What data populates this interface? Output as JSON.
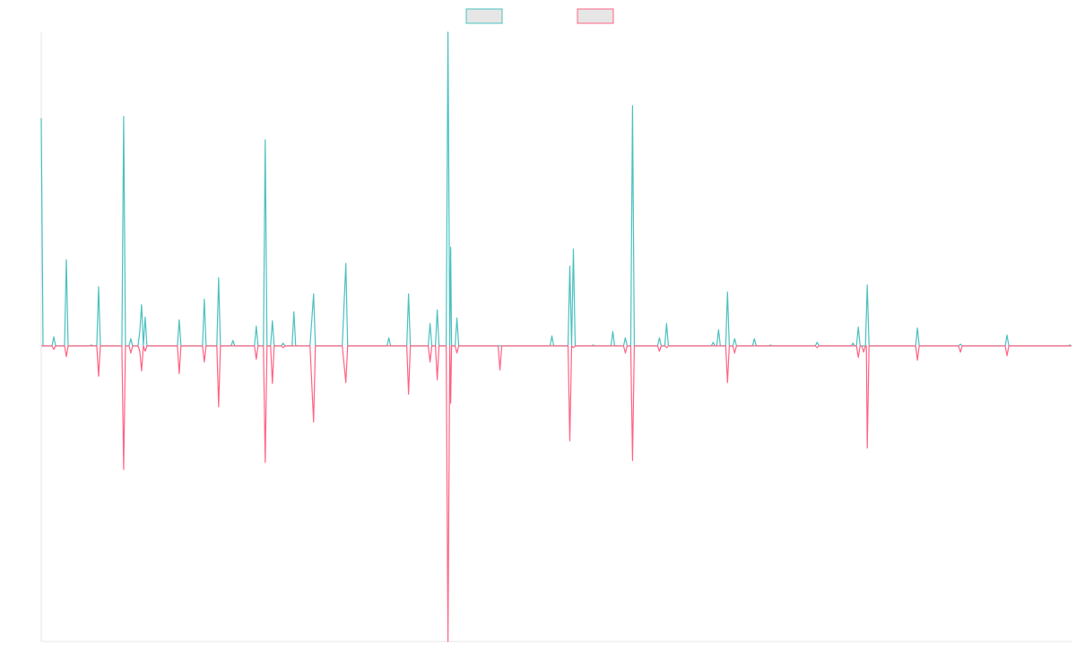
{
  "chart_data": {
    "type": "line",
    "title": "",
    "xlabel": "",
    "ylabel": "",
    "grid": false,
    "legend_position": "top-center",
    "ylim": [
      -330,
      350
    ],
    "xlim": [
      0,
      575
    ],
    "series": [
      {
        "color": "#4bc0c0",
        "fill": "#e6e6e6",
        "points": [
          [
            0,
            254
          ],
          [
            1,
            0
          ],
          [
            6,
            0
          ],
          [
            7,
            10
          ],
          [
            8,
            0
          ],
          [
            13,
            0
          ],
          [
            14,
            96
          ],
          [
            15,
            0
          ],
          [
            27,
            0
          ],
          [
            28,
            1
          ],
          [
            29,
            0
          ],
          [
            31,
            0
          ],
          [
            32,
            66
          ],
          [
            33,
            0
          ],
          [
            45,
            0
          ],
          [
            46,
            256
          ],
          [
            47,
            0
          ],
          [
            49,
            0
          ],
          [
            50,
            8
          ],
          [
            51,
            0
          ],
          [
            54,
            0
          ],
          [
            55,
            16
          ],
          [
            56,
            46
          ],
          [
            57,
            0
          ],
          [
            58,
            32
          ],
          [
            59,
            0
          ],
          [
            76,
            0
          ],
          [
            77,
            29
          ],
          [
            78,
            0
          ],
          [
            90,
            0
          ],
          [
            91,
            52
          ],
          [
            92,
            0
          ],
          [
            98,
            0
          ],
          [
            99,
            76
          ],
          [
            100,
            0
          ],
          [
            106,
            0
          ],
          [
            107,
            6
          ],
          [
            108,
            0
          ],
          [
            119,
            0
          ],
          [
            120,
            22
          ],
          [
            121,
            0
          ],
          [
            124,
            0
          ],
          [
            125,
            230
          ],
          [
            126,
            0
          ],
          [
            128,
            0
          ],
          [
            129,
            28
          ],
          [
            130,
            0
          ],
          [
            134,
            0
          ],
          [
            135,
            3
          ],
          [
            136,
            0
          ],
          [
            140,
            0
          ],
          [
            141,
            38
          ],
          [
            142,
            0
          ],
          [
            150,
            0
          ],
          [
            152,
            58
          ],
          [
            153,
            0
          ],
          [
            168,
            0
          ],
          [
            170,
            92
          ],
          [
            171,
            0
          ],
          [
            193,
            0
          ],
          [
            194,
            9
          ],
          [
            195,
            0
          ],
          [
            204,
            0
          ],
          [
            205,
            58
          ],
          [
            206,
            0
          ],
          [
            216,
            0
          ],
          [
            217,
            25
          ],
          [
            218,
            0
          ],
          [
            220,
            0
          ],
          [
            221,
            40
          ],
          [
            222,
            0
          ],
          [
            226,
            0
          ],
          [
            227,
            350
          ],
          [
            228,
            0
          ],
          [
            228.5,
            110
          ],
          [
            229,
            0
          ],
          [
            231,
            0
          ],
          [
            232,
            31
          ],
          [
            233,
            0
          ],
          [
            284,
            0
          ],
          [
            285,
            11
          ],
          [
            286,
            0
          ],
          [
            294,
            0
          ],
          [
            295,
            89
          ],
          [
            296,
            0
          ],
          [
            297,
            108
          ],
          [
            298,
            0
          ],
          [
            307,
            0
          ],
          [
            308,
            1
          ],
          [
            309,
            0
          ],
          [
            318,
            0
          ],
          [
            319,
            16
          ],
          [
            320,
            0
          ],
          [
            325,
            0
          ],
          [
            326,
            9
          ],
          [
            327,
            0
          ],
          [
            329,
            0
          ],
          [
            330,
            268
          ],
          [
            331,
            0
          ],
          [
            344,
            0
          ],
          [
            345,
            9
          ],
          [
            346,
            0
          ],
          [
            348,
            0
          ],
          [
            349,
            25
          ],
          [
            350,
            0
          ],
          [
            374,
            0
          ],
          [
            375,
            4
          ],
          [
            376,
            0
          ],
          [
            377,
            0
          ],
          [
            378,
            18
          ],
          [
            379,
            0
          ],
          [
            382,
            0
          ],
          [
            383,
            60
          ],
          [
            384,
            0
          ],
          [
            386,
            0
          ],
          [
            387,
            8
          ],
          [
            388,
            0
          ],
          [
            397,
            0
          ],
          [
            398,
            8
          ],
          [
            399,
            0
          ],
          [
            406,
            0
          ],
          [
            407,
            1
          ],
          [
            408,
            0
          ],
          [
            432,
            0
          ],
          [
            433,
            4
          ],
          [
            434,
            0
          ],
          [
            452,
            0
          ],
          [
            453,
            3
          ],
          [
            454,
            0
          ],
          [
            455,
            0
          ],
          [
            456,
            21
          ],
          [
            457,
            0
          ],
          [
            460,
            0
          ],
          [
            461,
            68
          ],
          [
            462,
            0
          ],
          [
            488,
            0
          ],
          [
            489,
            20
          ],
          [
            490,
            0
          ],
          [
            512,
            0
          ],
          [
            513,
            2
          ],
          [
            514,
            0
          ],
          [
            538,
            0
          ],
          [
            539,
            12
          ],
          [
            540,
            0
          ],
          [
            573,
            0
          ],
          [
            574,
            1
          ],
          [
            575,
            0
          ]
        ]
      },
      {
        "color": "#ff6384",
        "fill": "#e6e6e6",
        "points": [
          [
            0,
            0
          ],
          [
            6,
            0
          ],
          [
            7,
            -4
          ],
          [
            8,
            0
          ],
          [
            13,
            0
          ],
          [
            14,
            -12
          ],
          [
            15,
            0
          ],
          [
            31,
            0
          ],
          [
            32,
            -34
          ],
          [
            33,
            0
          ],
          [
            45,
            0
          ],
          [
            46,
            -138
          ],
          [
            47,
            0
          ],
          [
            49,
            0
          ],
          [
            50,
            -8
          ],
          [
            51,
            0
          ],
          [
            54,
            0
          ],
          [
            55,
            -6
          ],
          [
            56,
            -28
          ],
          [
            57,
            0
          ],
          [
            58,
            -6
          ],
          [
            59,
            0
          ],
          [
            76,
            0
          ],
          [
            77,
            -31
          ],
          [
            78,
            0
          ],
          [
            90,
            0
          ],
          [
            91,
            -18
          ],
          [
            92,
            0
          ],
          [
            98,
            0
          ],
          [
            99,
            -68
          ],
          [
            100,
            0
          ],
          [
            119,
            0
          ],
          [
            120,
            -15
          ],
          [
            121,
            0
          ],
          [
            124,
            0
          ],
          [
            125,
            -130
          ],
          [
            126,
            0
          ],
          [
            128,
            0
          ],
          [
            129,
            -42
          ],
          [
            130,
            0
          ],
          [
            134,
            0
          ],
          [
            135,
            -2
          ],
          [
            136,
            0
          ],
          [
            150,
            0
          ],
          [
            152,
            -85
          ],
          [
            153,
            0
          ],
          [
            168,
            0
          ],
          [
            170,
            -41
          ],
          [
            171,
            0
          ],
          [
            204,
            0
          ],
          [
            205,
            -54
          ],
          [
            206,
            0
          ],
          [
            216,
            0
          ],
          [
            217,
            -18
          ],
          [
            218,
            0
          ],
          [
            220,
            0
          ],
          [
            221,
            -38
          ],
          [
            222,
            0
          ],
          [
            226,
            0
          ],
          [
            227,
            -330
          ],
          [
            228,
            0
          ],
          [
            228.5,
            -64
          ],
          [
            229,
            0
          ],
          [
            231,
            0
          ],
          [
            232,
            -8
          ],
          [
            233,
            0
          ],
          [
            255,
            0
          ],
          [
            256,
            -27
          ],
          [
            257,
            0
          ],
          [
            294,
            0
          ],
          [
            295,
            -106
          ],
          [
            296,
            0
          ],
          [
            297,
            -2
          ],
          [
            298,
            0
          ],
          [
            325,
            0
          ],
          [
            326,
            -8
          ],
          [
            327,
            0
          ],
          [
            329,
            0
          ],
          [
            330,
            -128
          ],
          [
            331,
            0
          ],
          [
            344,
            0
          ],
          [
            345,
            -6
          ],
          [
            346,
            0
          ],
          [
            348,
            0
          ],
          [
            349,
            -2
          ],
          [
            350,
            0
          ],
          [
            382,
            0
          ],
          [
            383,
            -41
          ],
          [
            384,
            0
          ],
          [
            386,
            0
          ],
          [
            387,
            -8
          ],
          [
            388,
            0
          ],
          [
            432,
            0
          ],
          [
            433,
            -2
          ],
          [
            434,
            0
          ],
          [
            455,
            0
          ],
          [
            456,
            -13
          ],
          [
            457,
            0
          ],
          [
            458,
            0
          ],
          [
            459,
            -7
          ],
          [
            460,
            0
          ],
          [
            460.5,
            0
          ],
          [
            461,
            -114
          ],
          [
            462,
            0
          ],
          [
            488,
            0
          ],
          [
            489,
            -16
          ],
          [
            490,
            0
          ],
          [
            512,
            0
          ],
          [
            513,
            -7
          ],
          [
            514,
            0
          ],
          [
            538,
            0
          ],
          [
            539,
            -11
          ],
          [
            540,
            0
          ],
          [
            575,
            0
          ]
        ]
      }
    ]
  }
}
